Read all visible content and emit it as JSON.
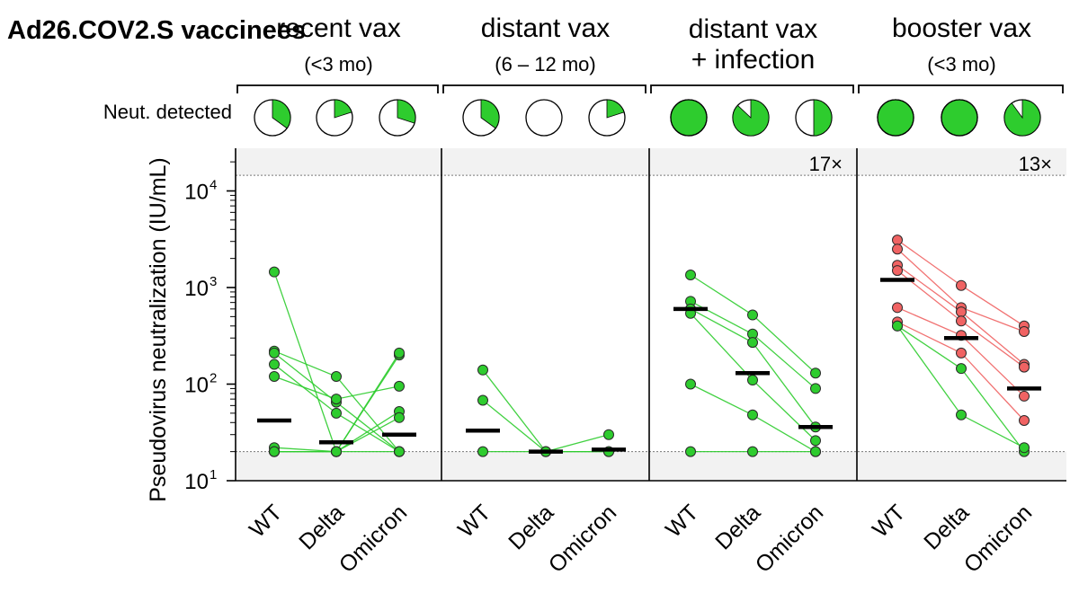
{
  "chart_data": {
    "type": "scatter",
    "title": "Ad26.COV2.S vaccinees",
    "neut_label": "Neut. detected",
    "ylabel": "Pseudovirus neutralization (IU/mL)",
    "yscale": "log",
    "ylim": [
      10,
      25000
    ],
    "yticks": [
      {
        "base": "10",
        "exp": "1",
        "value": 10
      },
      {
        "base": "10",
        "exp": "2",
        "value": 100
      },
      {
        "base": "10",
        "exp": "3",
        "value": 1000
      },
      {
        "base": "10",
        "exp": "4",
        "value": 10000
      }
    ],
    "lower_limit": 20,
    "upper_limit": 14500,
    "shade_color": "#f2f2f2",
    "green": "#2ecc2e",
    "red": "#f06363",
    "categories": [
      "WT",
      "Delta",
      "Omicron"
    ],
    "groups": [
      {
        "title": "recent vax",
        "subtitle": "(<3 mo)",
        "fold_change": "",
        "fraction_detected": [
          0.35,
          0.2,
          0.3
        ],
        "medians": [
          42,
          25,
          30
        ],
        "subjects": [
          {
            "v": [
              1450,
              20,
              200
            ],
            "c": "green"
          },
          {
            "v": [
              220,
              120,
              20
            ],
            "c": "green"
          },
          {
            "v": [
              210,
              65,
              20
            ],
            "c": "green"
          },
          {
            "v": [
              160,
              50,
              20
            ],
            "c": "green"
          },
          {
            "v": [
              120,
              70,
              95
            ],
            "c": "green"
          },
          {
            "v": [
              20,
              20,
              210
            ],
            "c": "green"
          },
          {
            "v": [
              22,
              20,
              52
            ],
            "c": "green"
          },
          {
            "v": [
              20,
              20,
              45
            ],
            "c": "green"
          },
          {
            "v": [
              20,
              20,
              20
            ],
            "c": "green"
          }
        ]
      },
      {
        "title": "distant vax",
        "subtitle": "(6 – 12 mo)",
        "fold_change": "",
        "fraction_detected": [
          0.35,
          0,
          0.2
        ],
        "medians": [
          33,
          20,
          21
        ],
        "subjects": [
          {
            "v": [
              140,
              20,
              20
            ],
            "c": "green"
          },
          {
            "v": [
              68,
              20,
              30
            ],
            "c": "green"
          },
          {
            "v": [
              20,
              20,
              20
            ],
            "c": "green"
          }
        ]
      },
      {
        "title": "distant vax",
        "subtitle": "+ infection",
        "fold_change": "17×",
        "fraction_detected": [
          1,
          0.87,
          0.5
        ],
        "medians": [
          600,
          130,
          36
        ],
        "subjects": [
          {
            "v": [
              1350,
              520,
              130
            ],
            "c": "green"
          },
          {
            "v": [
              720,
              330,
              90
            ],
            "c": "green"
          },
          {
            "v": [
              600,
              270,
              36
            ],
            "c": "green"
          },
          {
            "v": [
              540,
              110,
              26
            ],
            "c": "green"
          },
          {
            "v": [
              100,
              48,
              20
            ],
            "c": "green"
          },
          {
            "v": [
              20,
              20,
              20
            ],
            "c": "green"
          }
        ]
      },
      {
        "title": "booster vax",
        "subtitle": "(<3 mo)",
        "fold_change": "13×",
        "fraction_detected": [
          1,
          1,
          0.9
        ],
        "medians": [
          1200,
          300,
          90
        ],
        "subjects": [
          {
            "v": [
              3100,
              1050,
              400
            ],
            "c": "red"
          },
          {
            "v": [
              2500,
              620,
              350
            ],
            "c": "red"
          },
          {
            "v": [
              1700,
              560,
              160
            ],
            "c": "red"
          },
          {
            "v": [
              1500,
              450,
              150
            ],
            "c": "red"
          },
          {
            "v": [
              620,
              320,
              75
            ],
            "c": "red"
          },
          {
            "v": [
              440,
              210,
              42
            ],
            "c": "red"
          },
          {
            "v": [
              400,
              145,
              20
            ],
            "c": "green"
          },
          {
            "v": [
              400,
              48,
              22
            ],
            "c": "green"
          }
        ]
      }
    ]
  }
}
